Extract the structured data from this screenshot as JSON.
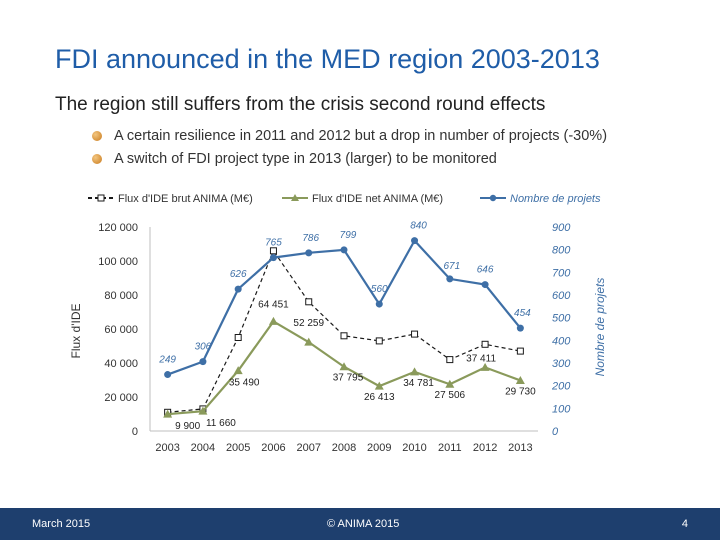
{
  "slide": {
    "title": "FDI announced in the MED region 2003-2013",
    "subtitle": "The region still suffers from the crisis second round effects",
    "bullets": [
      {
        "text": "A certain resilience in 2011 and 2012 but a drop in number of projects (-30%)",
        "icon": "bullet-icon"
      },
      {
        "text": "A switch of FDI project type in 2013 (larger) to be monitored",
        "icon": "bullet-icon"
      }
    ]
  },
  "chart_data": {
    "type": "line",
    "categories": [
      "2003",
      "2004",
      "2005",
      "2006",
      "2007",
      "2008",
      "2009",
      "2010",
      "2011",
      "2012",
      "2013"
    ],
    "y_left": {
      "label": "Flux d'IDE",
      "range": [
        0,
        120000
      ],
      "ticks": [
        "0",
        "20 000",
        "40 000",
        "60 000",
        "80 000",
        "100 000",
        "120 000"
      ]
    },
    "y_right": {
      "label": "Nombre de projets",
      "range": [
        0,
        900
      ],
      "ticks": [
        "0",
        "100",
        "200",
        "300",
        "400",
        "500",
        "600",
        "700",
        "800",
        "900"
      ]
    },
    "grid": false,
    "legend_position": "top",
    "series": [
      {
        "name": "Flux d'IDE brut ANIMA (M€)",
        "axis": "left",
        "color": "#1a1a1a",
        "style": "dashed",
        "marker": "square",
        "values": [
          11000,
          13000,
          55000,
          106000,
          76000,
          56000,
          53000,
          57000,
          42000,
          51000,
          47000
        ],
        "labels": []
      },
      {
        "name": "Flux d'IDE net ANIMA (M€)",
        "axis": "left",
        "color": "#8a9a5b",
        "style": "solid",
        "marker": "triangle",
        "values": [
          9900,
          11660,
          35490,
          64451,
          52259,
          37795,
          26413,
          34781,
          27506,
          37411,
          29730
        ],
        "labels": [
          "9 900",
          "11 660",
          "35 490",
          "64 451",
          "52 259",
          "37 795",
          "26 413",
          "34 781",
          "27 506",
          "37 411",
          "29 730"
        ]
      },
      {
        "name": "Nombre de projets",
        "axis": "right",
        "color": "#3e6fa6",
        "style": "solid",
        "marker": "circle",
        "values": [
          249,
          306,
          626,
          765,
          786,
          799,
          560,
          840,
          671,
          646,
          454
        ],
        "labels": [
          "249",
          "306",
          "626",
          "765",
          "786",
          "799",
          "560",
          "840",
          "671",
          "646",
          "454"
        ]
      }
    ]
  },
  "footer": {
    "date": "March 2015",
    "copyright": "© ANIMA 2015",
    "page": "4"
  }
}
